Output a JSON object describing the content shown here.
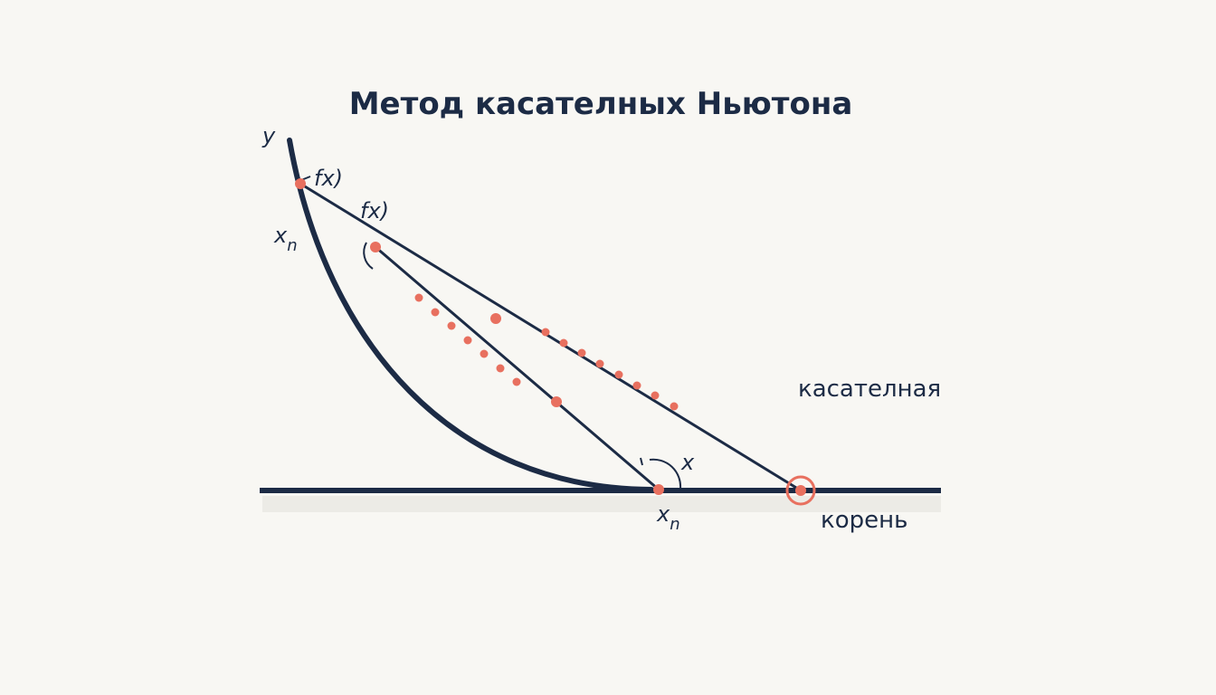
{
  "title": "Метод касателных Ньютона",
  "labels": {
    "y_axis": "y",
    "fx_upper": "fx)",
    "fx_lower": "fx)",
    "xn_left": {
      "text": "x",
      "sub": "n"
    },
    "x_angle": "x",
    "xn_bottom": {
      "text": "x",
      "sub": "n"
    },
    "tangent": "касателная",
    "root": "корень"
  }
}
